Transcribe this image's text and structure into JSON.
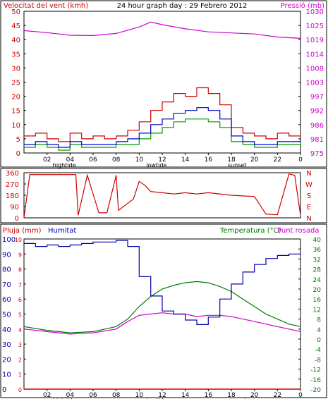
{
  "colors": {
    "wind": "#cc0000",
    "gust": "#009900",
    "avg_wind": "#0000cc",
    "pressure": "#cc00cc",
    "direction": "#cc0000",
    "rain": "#cc0000",
    "humidity": "#0000aa",
    "temperature": "#007700",
    "dewpoint": "#cc00cc",
    "frame": "#000000"
  },
  "header": {
    "wind_label": "Velocitat del vent (kmh)",
    "title": "24 hour graph day : 29 Febrero 2012",
    "pressure_label": "Pressió (mb)"
  },
  "x_axis": {
    "hours": [
      "02",
      "04",
      "06",
      "08",
      "10",
      "12",
      "14",
      "16",
      "18",
      "20",
      "22",
      "0"
    ],
    "events": [
      "hightide",
      "lowtide",
      "sunset"
    ]
  },
  "chart_data": [
    {
      "type": "line",
      "panel": "wind-pressure",
      "x_unit": "hour",
      "left_axis": {
        "label": "Velocitat del vent (kmh)",
        "ticks": [
          0,
          5,
          10,
          15,
          20,
          25,
          30,
          35,
          40,
          45,
          50
        ]
      },
      "right_axis": {
        "label": "Pressió (mb)",
        "ticks": [
          "975",
          "981",
          "986",
          "992",
          "997",
          "1003",
          "1008",
          "1014",
          "1019",
          "1025",
          "1030"
        ]
      },
      "series": [
        {
          "role": "wind",
          "points": [
            [
              0,
              6
            ],
            [
              1,
              7
            ],
            [
              2,
              5
            ],
            [
              3,
              4
            ],
            [
              4,
              7
            ],
            [
              5,
              5
            ],
            [
              6,
              6
            ],
            [
              7,
              5
            ],
            [
              8,
              6
            ],
            [
              9,
              8
            ],
            [
              10,
              11
            ],
            [
              11,
              15
            ],
            [
              12,
              18
            ],
            [
              13,
              21
            ],
            [
              14,
              20
            ],
            [
              15,
              23
            ],
            [
              16,
              21
            ],
            [
              17,
              17
            ],
            [
              18,
              9
            ],
            [
              19,
              7
            ],
            [
              20,
              6
            ],
            [
              21,
              5
            ],
            [
              22,
              7
            ],
            [
              23,
              6
            ],
            [
              24,
              7
            ]
          ]
        },
        {
          "role": "avg_wind",
          "points": [
            [
              0,
              3
            ],
            [
              1,
              4
            ],
            [
              2,
              3
            ],
            [
              3,
              2
            ],
            [
              4,
              4
            ],
            [
              5,
              3
            ],
            [
              6,
              3
            ],
            [
              7,
              3
            ],
            [
              8,
              4
            ],
            [
              9,
              5
            ],
            [
              10,
              7
            ],
            [
              11,
              10
            ],
            [
              12,
              12
            ],
            [
              13,
              14
            ],
            [
              14,
              15
            ],
            [
              15,
              16
            ],
            [
              16,
              15
            ],
            [
              17,
              12
            ],
            [
              18,
              6
            ],
            [
              19,
              4
            ],
            [
              20,
              3
            ],
            [
              21,
              3
            ],
            [
              22,
              4
            ],
            [
              23,
              4
            ],
            [
              24,
              5
            ]
          ]
        },
        {
          "role": "gust",
          "points": [
            [
              0,
              2
            ],
            [
              1,
              3
            ],
            [
              2,
              2
            ],
            [
              3,
              1
            ],
            [
              4,
              3
            ],
            [
              5,
              2
            ],
            [
              6,
              2
            ],
            [
              7,
              2
            ],
            [
              8,
              3
            ],
            [
              9,
              3
            ],
            [
              10,
              5
            ],
            [
              11,
              7
            ],
            [
              12,
              9
            ],
            [
              13,
              11
            ],
            [
              14,
              12
            ],
            [
              15,
              12
            ],
            [
              16,
              11
            ],
            [
              17,
              9
            ],
            [
              18,
              4
            ],
            [
              19,
              3
            ],
            [
              20,
              2
            ],
            [
              21,
              2
            ],
            [
              22,
              3
            ],
            [
              23,
              3
            ],
            [
              24,
              4
            ]
          ]
        },
        {
          "role": "pressure",
          "points": [
            [
              0,
              1022.5
            ],
            [
              2,
              1021.7
            ],
            [
              4,
              1020.7
            ],
            [
              6,
              1020.6
            ],
            [
              8,
              1021.4
            ],
            [
              10,
              1023.9
            ],
            [
              11,
              1025.8
            ],
            [
              12,
              1024.8
            ],
            [
              14,
              1023.2
            ],
            [
              16,
              1022.0
            ],
            [
              18,
              1021.6
            ],
            [
              20,
              1021.2
            ],
            [
              22,
              1020.0
            ],
            [
              24,
              1019.5
            ]
          ]
        }
      ]
    },
    {
      "type": "line",
      "panel": "wind-direction",
      "x_unit": "hour",
      "left_axis": {
        "ticks": [
          0,
          90,
          180,
          270,
          360
        ]
      },
      "right_axis": {
        "ticks": [
          "N",
          "W",
          "S",
          "E",
          "N"
        ]
      },
      "series": [
        {
          "role": "direction",
          "points": [
            [
              0,
              0
            ],
            [
              0.5,
              345
            ],
            [
              4.5,
              345
            ],
            [
              4.7,
              20
            ],
            [
              5.5,
              340
            ],
            [
              6.5,
              40
            ],
            [
              7.2,
              40
            ],
            [
              8,
              340
            ],
            [
              8.2,
              60
            ],
            [
              9.5,
              150
            ],
            [
              10,
              290
            ],
            [
              10.5,
              260
            ],
            [
              11,
              210
            ],
            [
              12,
              200
            ],
            [
              13,
              190
            ],
            [
              14,
              200
            ],
            [
              15,
              190
            ],
            [
              16,
              200
            ],
            [
              18,
              180
            ],
            [
              19,
              175
            ],
            [
              20,
              170
            ],
            [
              21,
              30
            ],
            [
              22,
              25
            ],
            [
              23,
              350
            ],
            [
              23.5,
              340
            ],
            [
              24,
              20
            ]
          ]
        }
      ]
    },
    {
      "type": "line",
      "panel": "rain-humidity-temperature",
      "x_unit": "hour",
      "left_axis": {
        "label": "Pluja (mm)",
        "ticks": [
          0,
          1,
          2,
          3,
          4,
          5,
          6,
          7,
          8,
          9,
          10
        ]
      },
      "humidity_axis": {
        "label": "Humitat",
        "ticks": [
          0,
          10,
          20,
          30,
          40,
          50,
          60,
          70,
          80,
          90,
          100
        ]
      },
      "right_axis": {
        "label": "Temperatura (°C)",
        "label2": "Punt rosada",
        "ticks": [
          -20,
          -16,
          -12,
          -8,
          -4,
          0,
          4,
          8,
          12,
          16,
          20,
          24,
          28,
          32,
          36,
          40
        ]
      },
      "series": [
        {
          "role": "rain",
          "points": [
            [
              0,
              0
            ],
            [
              24,
              0
            ]
          ]
        },
        {
          "role": "humidity",
          "points": [
            [
              0,
              97
            ],
            [
              1,
              95
            ],
            [
              2,
              96
            ],
            [
              3,
              95
            ],
            [
              4,
              96
            ],
            [
              5,
              97
            ],
            [
              6,
              98
            ],
            [
              7,
              98
            ],
            [
              8,
              99
            ],
            [
              9,
              95
            ],
            [
              10,
              75
            ],
            [
              11,
              62
            ],
            [
              12,
              52
            ],
            [
              13,
              50
            ],
            [
              14,
              46
            ],
            [
              15,
              43
            ],
            [
              16,
              48
            ],
            [
              17,
              60
            ],
            [
              18,
              70
            ],
            [
              19,
              78
            ],
            [
              20,
              83
            ],
            [
              21,
              87
            ],
            [
              22,
              89
            ],
            [
              23,
              90
            ],
            [
              24,
              91
            ]
          ]
        },
        {
          "role": "temperature",
          "points": [
            [
              0,
              5
            ],
            [
              2,
              3.5
            ],
            [
              4,
              2.5
            ],
            [
              6,
              3
            ],
            [
              8,
              5
            ],
            [
              9,
              8
            ],
            [
              10,
              13
            ],
            [
              11,
              17
            ],
            [
              12,
              20
            ],
            [
              13,
              21.5
            ],
            [
              14,
              22.5
            ],
            [
              15,
              23
            ],
            [
              16,
              22.5
            ],
            [
              17,
              21
            ],
            [
              18,
              19
            ],
            [
              19,
              16
            ],
            [
              20,
              13
            ],
            [
              21,
              10
            ],
            [
              22,
              8
            ],
            [
              23,
              6
            ],
            [
              24,
              5
            ]
          ]
        },
        {
          "role": "dewpoint",
          "points": [
            [
              0,
              4
            ],
            [
              2,
              3
            ],
            [
              4,
              2
            ],
            [
              6,
              2.5
            ],
            [
              8,
              4
            ],
            [
              9,
              7
            ],
            [
              10,
              9.5
            ],
            [
              11,
              10
            ],
            [
              12,
              10.5
            ],
            [
              13,
              10
            ],
            [
              14,
              10
            ],
            [
              15,
              9
            ],
            [
              16,
              9.5
            ],
            [
              17,
              9.5
            ],
            [
              18,
              9
            ],
            [
              19,
              8
            ],
            [
              20,
              7
            ],
            [
              21,
              6
            ],
            [
              22,
              5
            ],
            [
              23,
              4
            ],
            [
              24,
              3
            ]
          ]
        }
      ]
    }
  ]
}
